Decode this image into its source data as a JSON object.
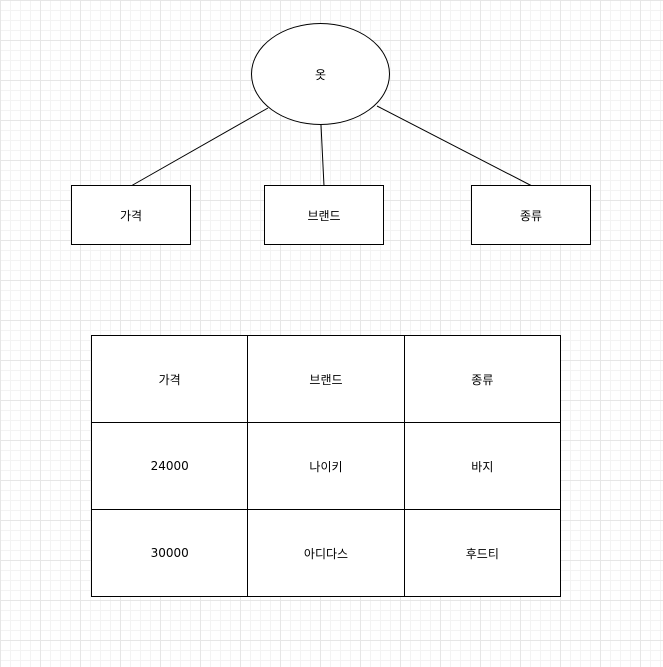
{
  "diagram": {
    "entity": {
      "label": "옷"
    },
    "attributes": [
      {
        "label": "가격"
      },
      {
        "label": "브랜드"
      },
      {
        "label": "종류"
      }
    ]
  },
  "table": {
    "header": [
      "가격",
      "브랜드",
      "종류"
    ],
    "rows": [
      [
        "24000",
        "나이키",
        "바지"
      ],
      [
        "30000",
        "아디다스",
        "후드티"
      ]
    ]
  }
}
